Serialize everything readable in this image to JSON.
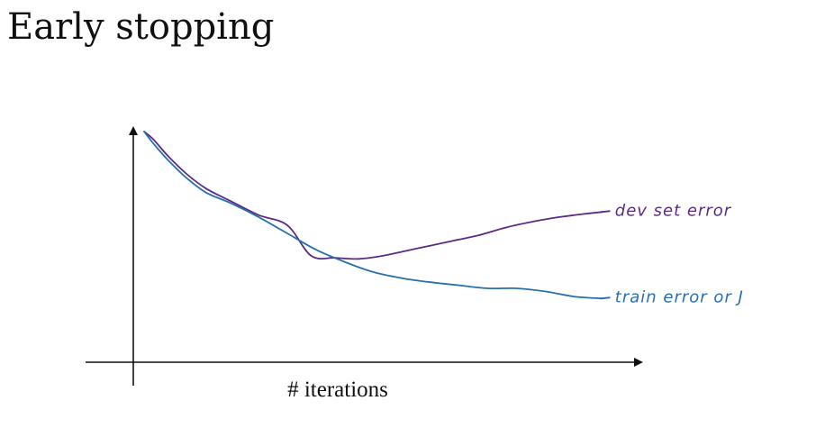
{
  "page": {
    "title": "Early stopping"
  },
  "chart_data": {
    "type": "line",
    "title": "Early stopping",
    "xlabel": "# iterations",
    "ylabel": "",
    "grid": false,
    "xlim": [
      0,
      100
    ],
    "ylim": [
      0,
      100
    ],
    "series": [
      {
        "name": "dev set error",
        "color": "#5b2c83",
        "x": [
          0,
          2,
          5,
          9,
          13,
          18,
          24,
          30,
          35,
          40,
          45,
          50,
          55,
          60,
          65,
          70,
          76,
          82,
          87,
          92,
          96
        ],
        "y": [
          100,
          96,
          88,
          79,
          72,
          66,
          59,
          54,
          39,
          38,
          37.5,
          39,
          41.5,
          44,
          46.5,
          49,
          53,
          56,
          58,
          59.5,
          60.5
        ]
      },
      {
        "name": "train error or J",
        "color": "#2a6fad",
        "x": [
          0,
          2,
          5,
          9,
          13,
          18,
          24,
          30,
          36,
          42,
          48,
          54,
          60,
          66,
          72,
          78,
          84,
          90,
          96
        ],
        "y": [
          100,
          94,
          86,
          77,
          70,
          65,
          58,
          50,
          42,
          36,
          31,
          28,
          26,
          24.5,
          23,
          23,
          21.5,
          19,
          18
        ]
      }
    ]
  }
}
